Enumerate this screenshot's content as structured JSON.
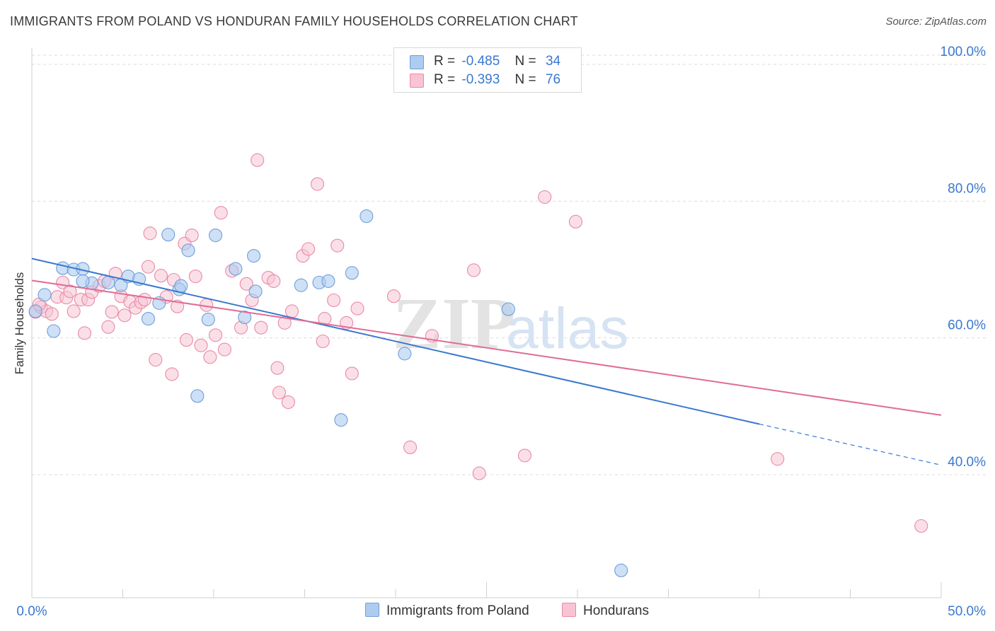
{
  "title": "IMMIGRANTS FROM POLAND VS HONDURAN FAMILY HOUSEHOLDS CORRELATION CHART",
  "source": "Source: ZipAtlas.com",
  "watermark": {
    "zip": "ZIP",
    "atlas": "atlas"
  },
  "legend": {
    "rows": [
      {
        "r_label": "R =",
        "r_value": "-0.485",
        "n_label": "N =",
        "n_value": "34"
      },
      {
        "r_label": "R =",
        "r_value": "-0.393",
        "n_label": "N =",
        "n_value": "76"
      }
    ]
  },
  "colors": {
    "poland_fill": "#aecbf0",
    "poland_stroke": "#6f9fd8",
    "poland_line": "#3a78d0",
    "honduran_fill": "#f8c4d4",
    "honduran_stroke": "#e88aa8",
    "honduran_line": "#e06b95",
    "grid": "#dcdcdc",
    "tick_label": "#3a78d0"
  },
  "chart_data": {
    "type": "scatter",
    "title": "IMMIGRANTS FROM POLAND VS HONDURAN FAMILY HOUSEHOLDS CORRELATION CHART",
    "xlabel": "",
    "ylabel": "Family Households",
    "xlim": [
      0,
      50
    ],
    "ylim": [
      22,
      103
    ],
    "x_tick_labels": [
      "0.0%",
      "50.0%"
    ],
    "y_ticks": [
      40,
      60,
      80,
      100
    ],
    "y_tick_labels": [
      "40.0%",
      "60.0%",
      "80.0%",
      "100.0%"
    ],
    "grid": true,
    "legend_position": "top-center",
    "series": [
      {
        "name": "Immigrants from Poland",
        "points": [
          [
            0.2,
            63.9
          ],
          [
            0.7,
            66.3
          ],
          [
            1.2,
            61.0
          ],
          [
            1.7,
            70.2
          ],
          [
            2.3,
            70.0
          ],
          [
            2.8,
            70.1
          ],
          [
            3.3,
            68.0
          ],
          [
            4.2,
            68.1
          ],
          [
            4.9,
            67.7
          ],
          [
            5.3,
            69.0
          ],
          [
            5.9,
            68.6
          ],
          [
            6.4,
            62.8
          ],
          [
            7.0,
            65.1
          ],
          [
            7.5,
            75.1
          ],
          [
            8.1,
            67.1
          ],
          [
            8.2,
            67.6
          ],
          [
            8.6,
            72.8
          ],
          [
            9.1,
            51.5
          ],
          [
            9.7,
            62.7
          ],
          [
            10.1,
            75.0
          ],
          [
            11.2,
            70.1
          ],
          [
            11.7,
            63.0
          ],
          [
            12.3,
            66.8
          ],
          [
            12.2,
            72.0
          ],
          [
            14.8,
            67.7
          ],
          [
            15.8,
            68.1
          ],
          [
            16.3,
            68.3
          ],
          [
            17.0,
            48.0
          ],
          [
            17.6,
            69.5
          ],
          [
            18.4,
            77.8
          ],
          [
            20.5,
            57.7
          ],
          [
            26.2,
            64.2
          ],
          [
            32.4,
            26.0
          ],
          [
            2.8,
            68.3
          ]
        ]
      },
      {
        "name": "Hondurans",
        "points": [
          [
            0.2,
            63.8
          ],
          [
            0.5,
            64.5
          ],
          [
            0.8,
            63.9
          ],
          [
            1.1,
            63.5
          ],
          [
            1.4,
            66.0
          ],
          [
            1.7,
            68.1
          ],
          [
            1.9,
            65.9
          ],
          [
            2.1,
            66.8
          ],
          [
            2.3,
            63.9
          ],
          [
            2.7,
            65.6
          ],
          [
            2.9,
            60.7
          ],
          [
            3.1,
            65.6
          ],
          [
            3.3,
            66.7
          ],
          [
            3.7,
            67.6
          ],
          [
            4.0,
            68.3
          ],
          [
            4.2,
            61.6
          ],
          [
            4.4,
            63.8
          ],
          [
            4.6,
            69.4
          ],
          [
            4.9,
            66.1
          ],
          [
            5.1,
            63.3
          ],
          [
            5.4,
            65.3
          ],
          [
            5.7,
            64.4
          ],
          [
            6.0,
            65.2
          ],
          [
            6.2,
            65.6
          ],
          [
            6.4,
            70.4
          ],
          [
            6.5,
            75.3
          ],
          [
            6.8,
            56.8
          ],
          [
            7.1,
            69.1
          ],
          [
            7.4,
            66.0
          ],
          [
            7.7,
            54.7
          ],
          [
            7.8,
            68.5
          ],
          [
            8.0,
            64.6
          ],
          [
            8.4,
            73.8
          ],
          [
            8.5,
            59.7
          ],
          [
            8.8,
            75.0
          ],
          [
            9.0,
            69.0
          ],
          [
            9.3,
            58.9
          ],
          [
            9.6,
            64.8
          ],
          [
            9.8,
            57.2
          ],
          [
            10.1,
            60.4
          ],
          [
            10.4,
            78.3
          ],
          [
            10.6,
            58.3
          ],
          [
            11.0,
            69.8
          ],
          [
            11.5,
            61.5
          ],
          [
            11.8,
            67.9
          ],
          [
            12.1,
            65.5
          ],
          [
            12.4,
            86.0
          ],
          [
            12.6,
            61.5
          ],
          [
            13.0,
            68.8
          ],
          [
            13.3,
            68.3
          ],
          [
            13.5,
            55.6
          ],
          [
            13.6,
            52.0
          ],
          [
            13.9,
            62.2
          ],
          [
            14.1,
            50.6
          ],
          [
            14.3,
            63.9
          ],
          [
            14.9,
            72.0
          ],
          [
            15.2,
            73.0
          ],
          [
            15.7,
            82.5
          ],
          [
            16.0,
            59.5
          ],
          [
            16.1,
            62.8
          ],
          [
            16.6,
            65.5
          ],
          [
            16.8,
            73.5
          ],
          [
            17.3,
            62.2
          ],
          [
            17.6,
            54.8
          ],
          [
            17.9,
            64.3
          ],
          [
            19.9,
            66.1
          ],
          [
            20.8,
            44.0
          ],
          [
            22.0,
            60.3
          ],
          [
            24.3,
            69.9
          ],
          [
            24.6,
            40.2
          ],
          [
            27.1,
            42.8
          ],
          [
            28.2,
            80.6
          ],
          [
            29.9,
            77.0
          ],
          [
            41.0,
            42.3
          ],
          [
            48.9,
            32.5
          ],
          [
            0.4,
            64.9
          ]
        ]
      }
    ],
    "trend_lines": [
      {
        "series": "Immigrants from Poland",
        "x": [
          0,
          40
        ],
        "y": [
          71.6,
          47.4
        ],
        "dashed_extension_x": [
          40,
          50
        ],
        "dashed_extension_y": [
          47.4,
          41.4
        ]
      },
      {
        "series": "Hondurans",
        "x": [
          0,
          50
        ],
        "y": [
          68.4,
          48.7
        ]
      }
    ]
  },
  "bottom_legend": {
    "poland_label": "Immigrants from Poland",
    "honduran_label": "Hondurans"
  }
}
